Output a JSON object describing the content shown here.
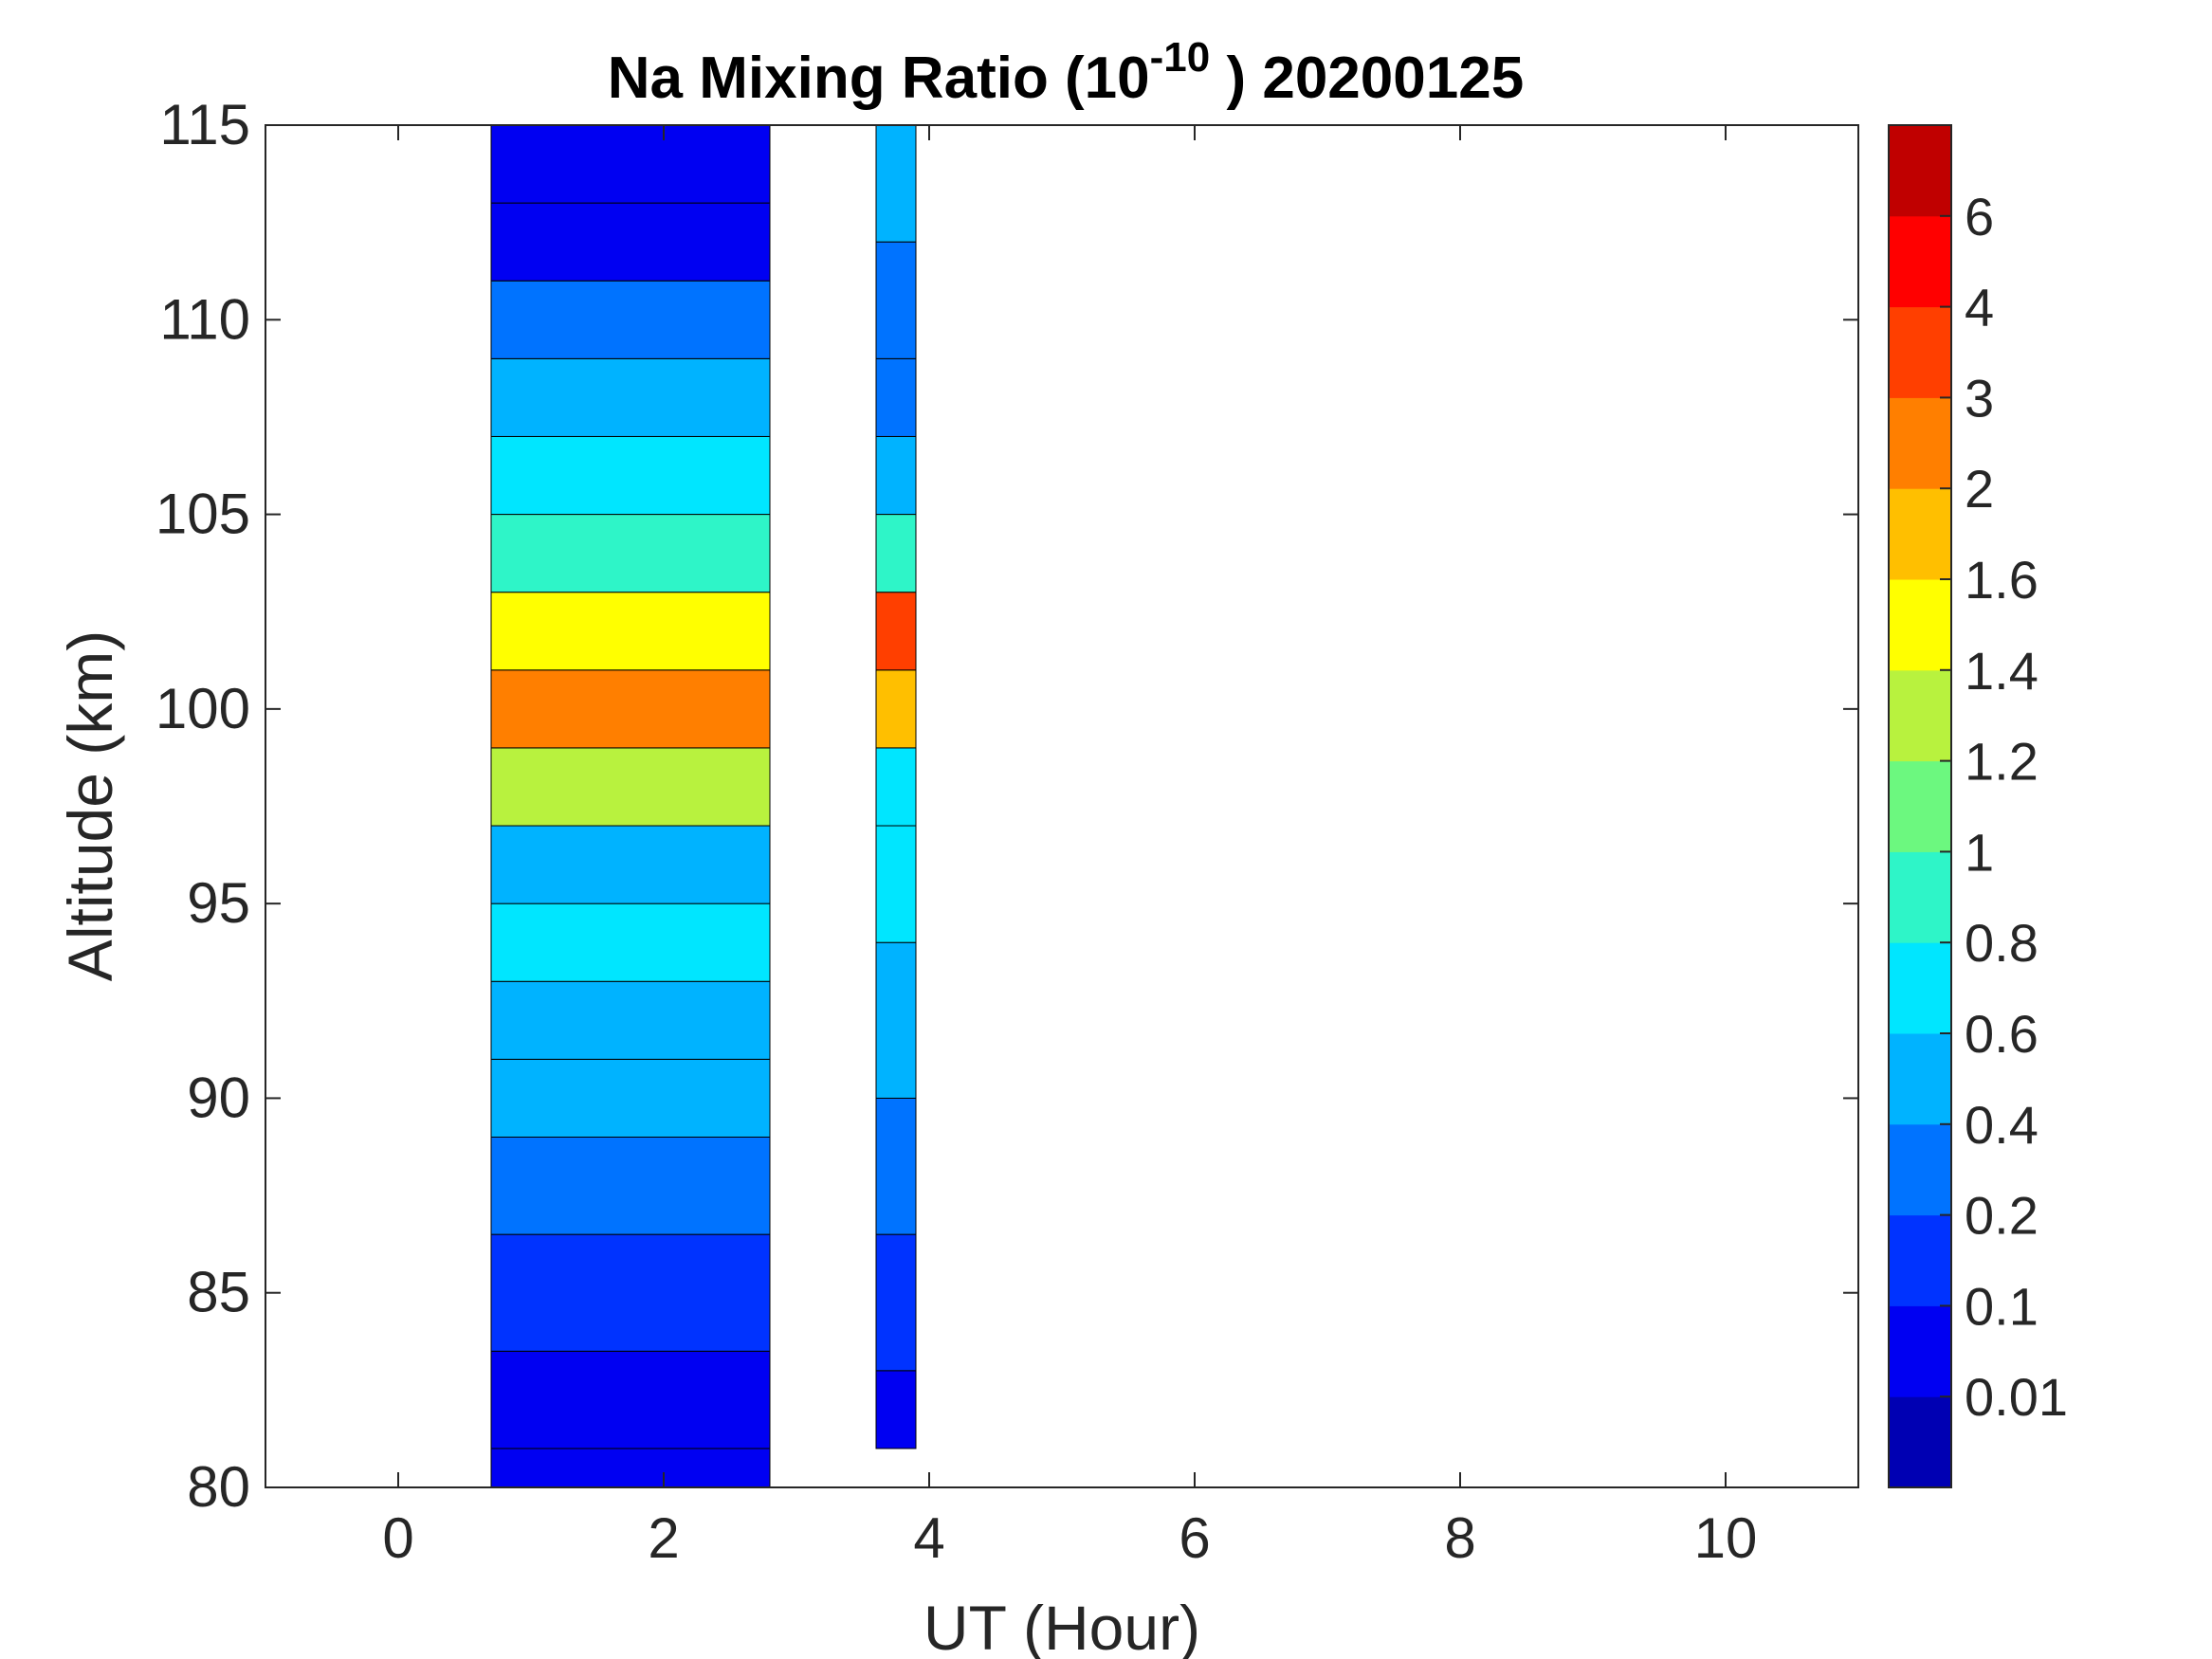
{
  "chart_data": {
    "type": "heatmap",
    "title": {
      "prefix": "Na Mixing Ratio (10",
      "superscript": "-10",
      "suffix": " ) 20200125"
    },
    "xlabel": "UT (Hour)",
    "ylabel": "Altitude (km)",
    "xlim": [
      -1,
      11
    ],
    "ylim": [
      80,
      115
    ],
    "x_ticks": [
      0,
      2,
      4,
      6,
      8,
      10
    ],
    "y_ticks": [
      80,
      85,
      90,
      95,
      100,
      105,
      110,
      115
    ],
    "colorbar": {
      "tick_labels": [
        "0.01",
        "0.1",
        "0.2",
        "0.4",
        "0.6",
        "0.8",
        "1",
        "1.2",
        "1.4",
        "1.6",
        "2",
        "3",
        "4",
        "6"
      ],
      "colors": [
        "#0000b3",
        "#0000f2",
        "#0033ff",
        "#0073ff",
        "#00b3ff",
        "#00e6ff",
        "#2ef5c8",
        "#6cf87f",
        "#b8f23e",
        "#ffff00",
        "#ffbf00",
        "#ff7f00",
        "#ff3f00",
        "#ff0000",
        "#c00000"
      ]
    },
    "series": [
      {
        "x_range": [
          0.7,
          2.8
        ],
        "profile_mean": {
          "altitude_km": [
            80,
            82,
            85,
            88,
            90,
            92,
            94,
            96,
            98,
            100,
            102,
            104,
            106,
            108,
            110,
            112,
            114
          ],
          "value": [
            0.01,
            0.05,
            0.1,
            0.2,
            0.4,
            0.5,
            0.7,
            0.5,
            1.2,
            2.0,
            1.4,
            0.8,
            0.7,
            0.5,
            0.2,
            0.05,
            0.02
          ]
        }
      },
      {
        "x_range": [
          3.6,
          3.9
        ],
        "profile_mean": {
          "altitude_km": [
            81,
            85,
            88,
            92,
            96,
            98,
            100,
            102,
            104,
            106,
            108,
            110,
            114
          ],
          "value": [
            0.05,
            0.15,
            0.3,
            0.5,
            0.6,
            0.7,
            1.6,
            3.0,
            0.8,
            0.4,
            0.2,
            0.3,
            0.4
          ]
        }
      }
    ],
    "grid": false
  }
}
